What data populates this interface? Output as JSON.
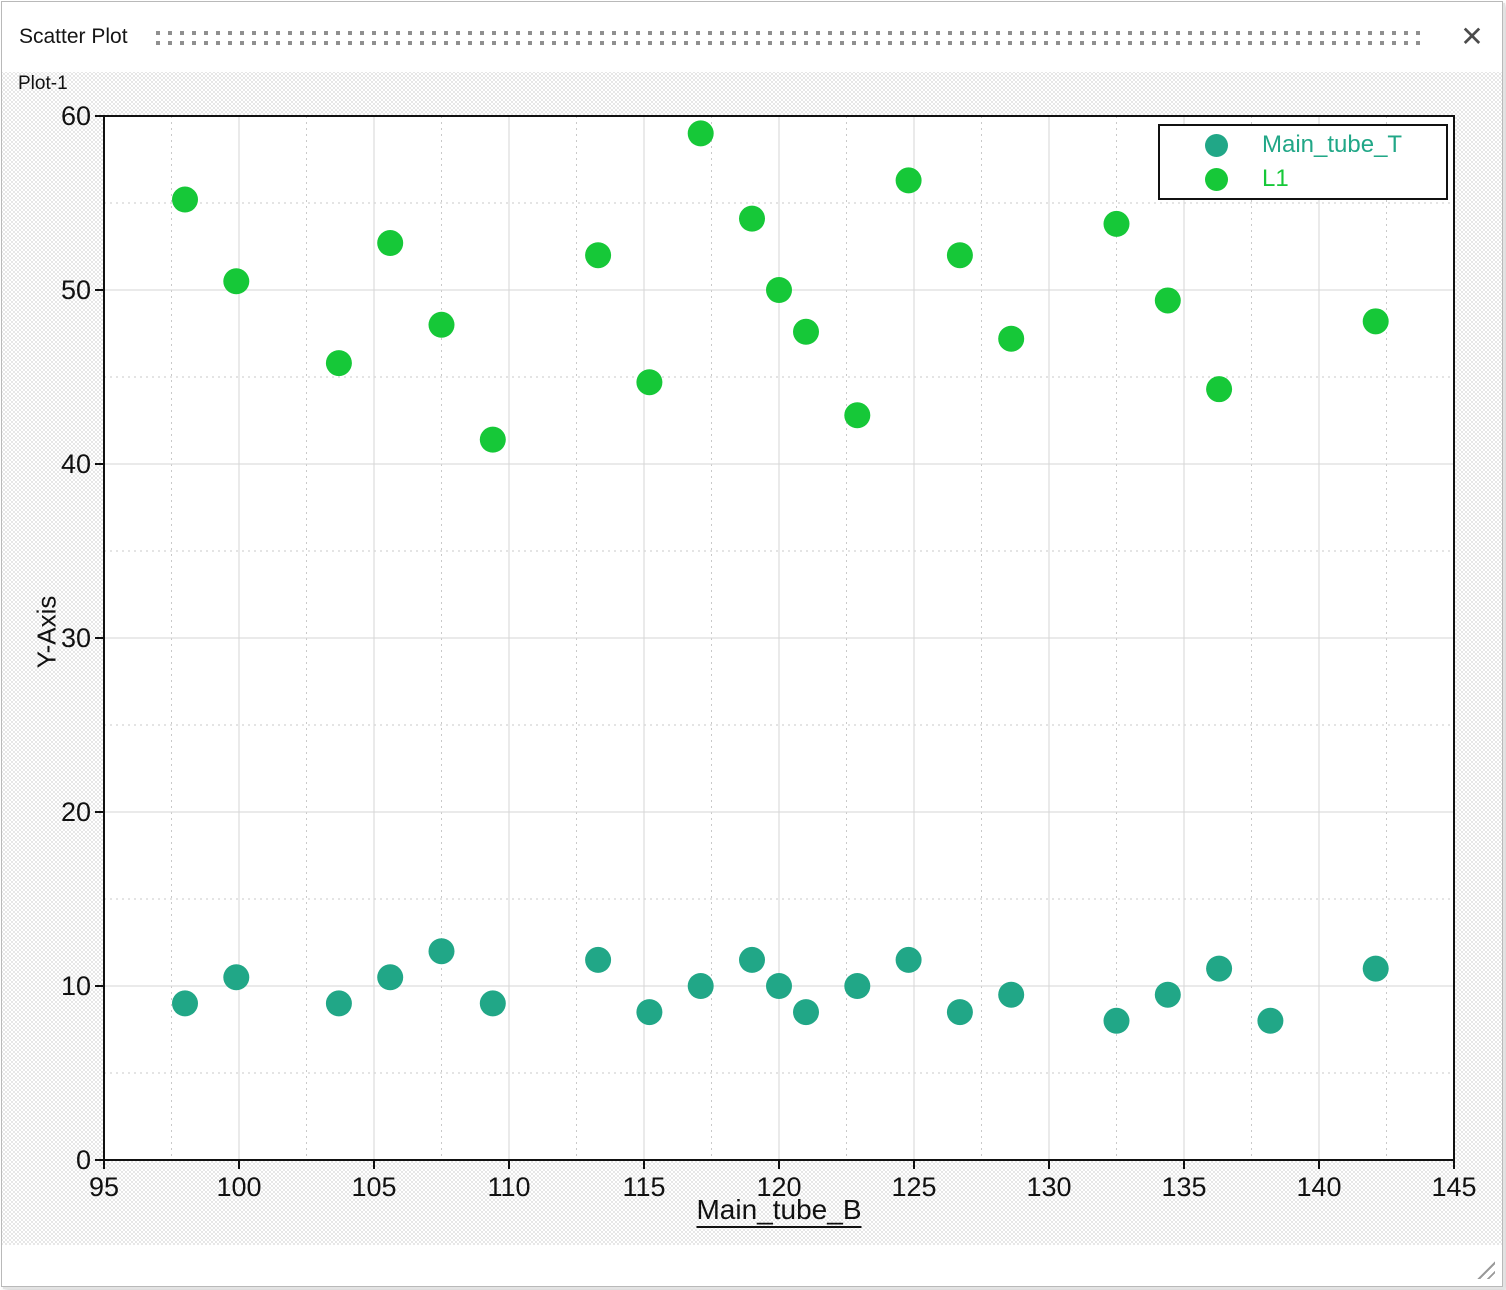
{
  "window": {
    "title": "Scatter Plot",
    "close_icon": "✕"
  },
  "colors": {
    "series_teal": "#21a787",
    "series_green": "#16c838",
    "grid_major": "#d6d6d6",
    "grid_minor": "#c9c9c9",
    "frame": "#111111",
    "drag_dots": "#8f8f8f"
  },
  "chart_data": {
    "type": "scatter",
    "title": "Plot-1",
    "xlabel": "Main_tube_B",
    "ylabel": "Y-Axis",
    "xlim": [
      95,
      145
    ],
    "ylim": [
      0,
      60
    ],
    "xticks": [
      95,
      100,
      105,
      110,
      115,
      120,
      125,
      130,
      135,
      140,
      145
    ],
    "yticks": [
      0,
      10,
      20,
      30,
      40,
      50,
      60
    ],
    "grid": "major solid, minor dotted (x every 2.5, y every 5)",
    "legend_position": "top-right",
    "marker_radius": 13,
    "series": [
      {
        "name": "Main_tube_T",
        "color": "#21a787",
        "x": [
          98,
          99.9,
          103.7,
          105.6,
          107.5,
          109.4,
          113.3,
          115.2,
          117.1,
          119,
          120,
          121,
          122.9,
          124.8,
          126.7,
          128.6,
          132.5,
          134.4,
          136.3,
          138.2,
          142.1
        ],
        "y": [
          9,
          10.5,
          9,
          10.5,
          12,
          9,
          11.5,
          8.5,
          10,
          11.5,
          10,
          8.5,
          10,
          11.5,
          8.5,
          9.5,
          8,
          9.5,
          11,
          8,
          11
        ]
      },
      {
        "name": "L1",
        "color": "#16c838",
        "x": [
          98,
          99.9,
          103.7,
          105.6,
          107.5,
          109.4,
          113.3,
          115.2,
          117.1,
          119,
          120,
          121,
          122.9,
          124.8,
          126.7,
          128.6,
          132.5,
          134.4,
          136.3,
          142.1
        ],
        "y": [
          55.2,
          50.5,
          45.8,
          52.7,
          48,
          41.4,
          52,
          44.7,
          59,
          54.1,
          50,
          47.6,
          42.8,
          56.3,
          52,
          47.2,
          53.8,
          49.4,
          44.3,
          48.2
        ]
      }
    ]
  }
}
